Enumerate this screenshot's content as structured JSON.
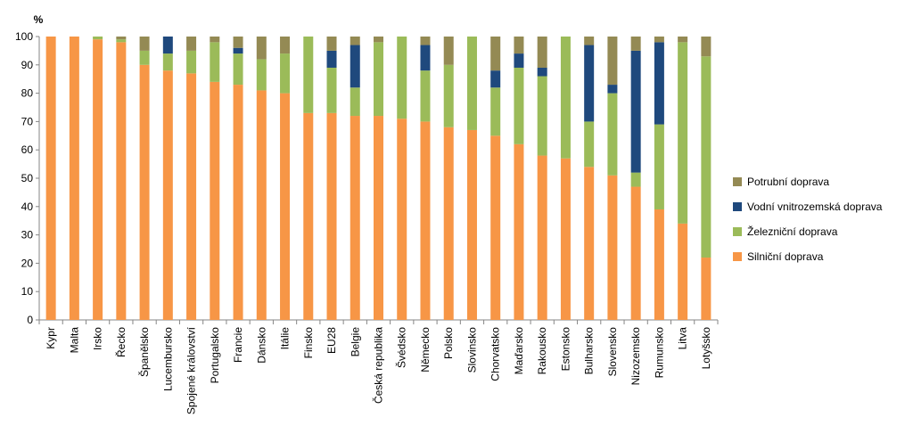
{
  "chart_data": {
    "type": "bar",
    "stacked": true,
    "y_unit_label": "%",
    "ylim": [
      0,
      100
    ],
    "yticks": [
      0,
      10,
      20,
      30,
      40,
      50,
      60,
      70,
      80,
      90,
      100
    ],
    "categories": [
      "Kypr",
      "Malta",
      "Irsko",
      "Řecko",
      "Španělsko",
      "Lucembursko",
      "Spojené království",
      "Portugalsko",
      "Francie",
      "Dánsko",
      "Itálie",
      "Finsko",
      "EU28",
      "Belgie",
      "Česká republika",
      "Švédsko",
      "Německo",
      "Polsko",
      "Slovinsko",
      "Chorvatsko",
      "Maďarsko",
      "Rakousko",
      "Estonsko",
      "Bulharsko",
      "Slovensko",
      "Nizozemsko",
      "Rumunsko",
      "Litva",
      "Lotyšsko"
    ],
    "series": [
      {
        "name": "Silniční doprava",
        "color": "#F79646",
        "values": [
          100,
          100,
          99,
          98,
          90,
          88,
          87,
          84,
          83,
          81,
          80,
          73,
          73,
          72,
          72,
          71,
          70,
          68,
          67,
          65,
          62,
          58,
          57,
          54,
          51,
          47,
          39,
          34,
          22
        ]
      },
      {
        "name": "Železniční doprava",
        "color": "#9BBB59",
        "values": [
          0,
          0,
          1,
          1,
          5,
          6,
          8,
          14,
          11,
          11,
          14,
          27,
          16,
          10,
          26,
          29,
          18,
          22,
          33,
          17,
          27,
          28,
          43,
          16,
          29,
          5,
          30,
          64,
          71
        ]
      },
      {
        "name": "Vodní vnitrozemská doprava",
        "color": "#1F497D",
        "values": [
          0,
          0,
          0,
          0,
          0,
          6,
          0,
          0,
          2,
          0,
          0,
          0,
          6,
          15,
          0,
          0,
          9,
          0,
          0,
          6,
          5,
          3,
          0,
          27,
          3,
          43,
          29,
          0,
          0
        ]
      },
      {
        "name": "Potrubní doprava",
        "color": "#948A54",
        "values": [
          0,
          0,
          0,
          1,
          5,
          0,
          5,
          2,
          4,
          8,
          6,
          0,
          5,
          3,
          2,
          0,
          3,
          10,
          0,
          12,
          6,
          11,
          0,
          3,
          17,
          5,
          2,
          2,
          7
        ]
      }
    ],
    "legend_order": [
      "Potrubní doprava",
      "Vodní vnitrozemská doprava",
      "Železniční doprava",
      "Silniční doprava"
    ],
    "legend_position": "right",
    "grid": false
  }
}
